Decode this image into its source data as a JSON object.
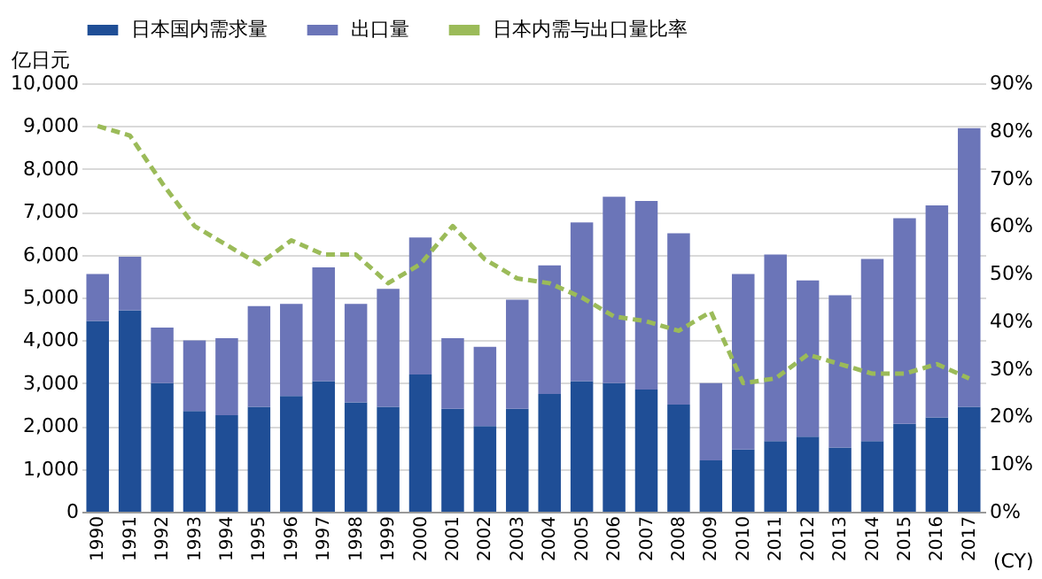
{
  "chart_data": {
    "type": "bar",
    "stacked": true,
    "ylabel": "亿日元",
    "xlabel": "(CY)",
    "legend": "top",
    "grid": "y",
    "categories": [
      "1990",
      "1991",
      "1992",
      "1993",
      "1994",
      "1995",
      "1996",
      "1997",
      "1998",
      "1999",
      "2000",
      "2001",
      "2002",
      "2003",
      "2004",
      "2005",
      "2006",
      "2007",
      "2008",
      "2009",
      "2010",
      "2011",
      "2012",
      "2013",
      "2014",
      "2015",
      "2016",
      "2017"
    ],
    "series": [
      {
        "name": "日本国内需求量",
        "color": "#1f4e96",
        "values": [
          4450,
          4700,
          3000,
          2350,
          2250,
          2450,
          2700,
          3050,
          2550,
          2450,
          3200,
          2400,
          2000,
          2400,
          2750,
          3050,
          3000,
          2850,
          2500,
          1200,
          1450,
          1650,
          1750,
          1500,
          1650,
          2050,
          2200,
          2450
        ]
      },
      {
        "name": "出口量",
        "color": "#6b75b8",
        "values": [
          1100,
          1250,
          1300,
          1650,
          1800,
          2350,
          2150,
          2650,
          2300,
          2750,
          3200,
          1650,
          1850,
          2550,
          3000,
          3700,
          4350,
          4400,
          4000,
          1800,
          4100,
          4350,
          3650,
          3550,
          4250,
          4800,
          4950,
          6500
        ]
      },
      {
        "name": "日本内需与出口量比率",
        "type": "line",
        "axis": "y2",
        "line_style": "dashed",
        "color": "#9bbb59",
        "values": [
          81,
          79,
          69,
          60,
          56,
          52,
          57,
          54,
          54,
          48,
          52,
          60,
          53,
          49,
          48,
          45,
          41,
          40,
          38,
          42,
          27,
          28,
          33,
          31,
          29,
          29,
          31,
          28
        ]
      }
    ],
    "ylim": [
      0,
      10000
    ],
    "yticks": [
      {
        "value": 0,
        "label": "0"
      },
      {
        "value": 1000,
        "label": "1,000"
      },
      {
        "value": 2000,
        "label": "2,000"
      },
      {
        "value": 3000,
        "label": "3,000"
      },
      {
        "value": 4000,
        "label": "4,000"
      },
      {
        "value": 5000,
        "label": "5,000"
      },
      {
        "value": 6000,
        "label": "6,000"
      },
      {
        "value": 7000,
        "label": "7,000"
      },
      {
        "value": 8000,
        "label": "8,000"
      },
      {
        "value": 9000,
        "label": "9,000"
      },
      {
        "value": 10000,
        "label": "10,000"
      }
    ],
    "y2lim": [
      0,
      90
    ],
    "y2ticks": [
      {
        "value": 0,
        "label": "0%"
      },
      {
        "value": 10,
        "label": "10%"
      },
      {
        "value": 20,
        "label": "20%"
      },
      {
        "value": 30,
        "label": "30%"
      },
      {
        "value": 40,
        "label": "40%"
      },
      {
        "value": 50,
        "label": "50%"
      },
      {
        "value": 60,
        "label": "60%"
      },
      {
        "value": 70,
        "label": "70%"
      },
      {
        "value": 80,
        "label": "80%"
      },
      {
        "value": 90,
        "label": "90%"
      }
    ]
  }
}
